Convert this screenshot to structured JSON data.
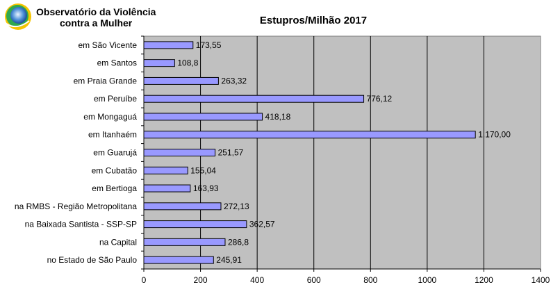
{
  "brand": {
    "line1": "Observatório da Violência",
    "line2": "contra a Mulher",
    "logo_icon": "observatory-logo-icon"
  },
  "colors": {
    "plot_bg": "#c0c0c0",
    "bar_fill": "#9999ff",
    "bar_stroke": "#000000",
    "grid": "#000000"
  },
  "chart_data": {
    "type": "bar",
    "orientation": "horizontal",
    "title": "Estupros/Milhão 2017",
    "xlabel": "",
    "ylabel": "",
    "xlim": [
      0,
      1400
    ],
    "xticks": [
      0,
      200,
      400,
      600,
      800,
      1000,
      1200,
      1400
    ],
    "grid": "vertical",
    "categories": [
      "em São Vicente",
      "em Santos",
      "em Praia Grande",
      "em Peruíbe",
      "em Mongaguá",
      "em Itanhaém",
      "em Guarujá",
      "em Cubatão",
      "em Bertioga",
      "na RMBS - Região Metropolitana",
      "na Baixada Santista - SSP-SP",
      "na Capital",
      "no Estado de São Paulo"
    ],
    "values": [
      173.55,
      108.8,
      263.32,
      776.12,
      418.18,
      1170.0,
      251.57,
      155.04,
      163.93,
      272.13,
      362.57,
      286.8,
      245.91
    ],
    "value_labels": [
      "173,55",
      "108,8",
      "263,32",
      "776,12",
      "418,18",
      "1.170,00",
      "251,57",
      "155,04",
      "163,93",
      "272,13",
      "362,57",
      "286,8",
      "245,91"
    ]
  }
}
